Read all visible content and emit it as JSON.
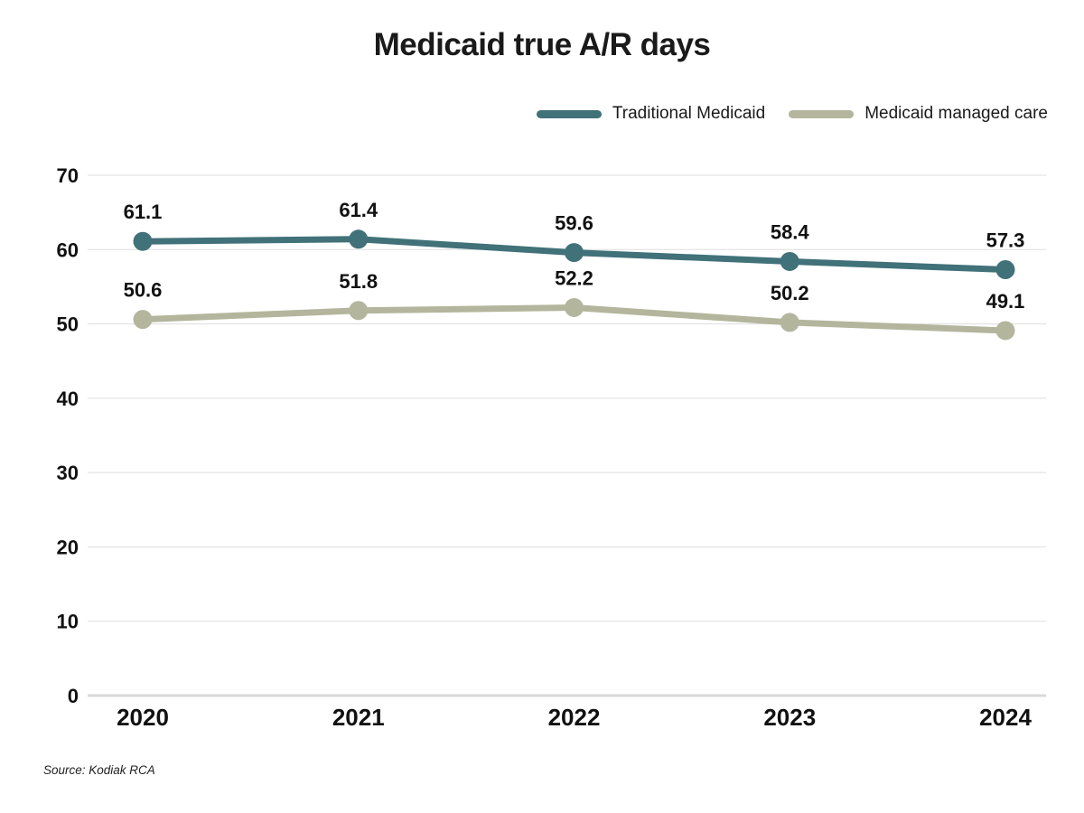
{
  "title": "Medicaid true A/R days",
  "source": "Source: Kodiak RCA",
  "colors": {
    "traditional_medicaid": "#417179",
    "medicaid_managed_care": "#B3B69D",
    "gridline": "#DDDDDD",
    "zero_axis_line": "#D8D8D8",
    "text": "#1A1A1A",
    "background": "#FFFFFF"
  },
  "chart_data": {
    "type": "line",
    "title": "Medicaid true A/R days",
    "categories": [
      "2020",
      "2021",
      "2022",
      "2023",
      "2024"
    ],
    "series": [
      {
        "name": "Traditional Medicaid",
        "color": "#417179",
        "values": [
          61.1,
          61.4,
          59.6,
          58.4,
          57.3
        ],
        "labels": [
          "61.1",
          "61.4",
          "59.6",
          "58.4",
          "57.3"
        ]
      },
      {
        "name": "Medicaid managed care",
        "color": "#B3B69D",
        "values": [
          50.6,
          51.8,
          52.2,
          50.2,
          49.1
        ],
        "labels": [
          "50.6",
          "51.8",
          "52.2",
          "50.2",
          "49.1"
        ]
      }
    ],
    "xlabel": "",
    "ylabel": "",
    "ylim": [
      0,
      70
    ],
    "y_ticks": [
      0,
      10,
      20,
      30,
      40,
      50,
      60,
      70
    ],
    "grid": true,
    "legend_position": "top-right",
    "source": "Source: Kodiak RCA"
  }
}
